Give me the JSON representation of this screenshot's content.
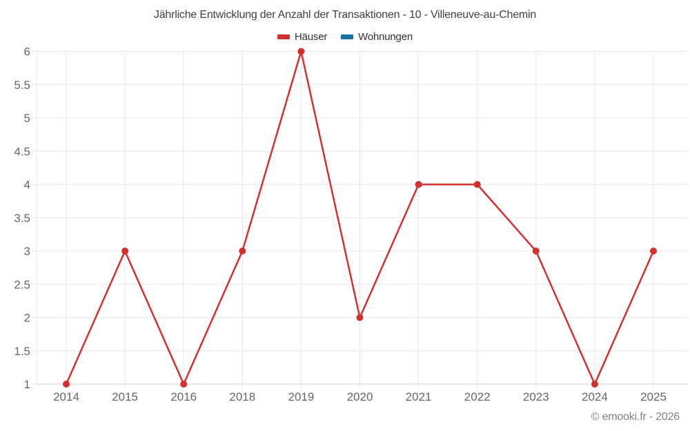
{
  "page": {
    "title": "Jährliche Entwicklung der Anzahl der Transaktionen - 10 - Villeneuve-au-Chemin",
    "footer": "© emooki.fr - 2026"
  },
  "legend": {
    "items": [
      {
        "label": "Häuser",
        "color": "#d32f2f"
      },
      {
        "label": "Wohnungen",
        "color": "#1673a3"
      }
    ]
  },
  "chart_data": {
    "type": "line",
    "title": "Jährliche Entwicklung der Anzahl der Transaktionen - 10 - Villeneuve-au-Chemin",
    "categories": [
      "2014",
      "2015",
      "2016",
      "2018",
      "2019",
      "2020",
      "2021",
      "2022",
      "2023",
      "2024",
      "2025"
    ],
    "series": [
      {
        "name": "Häuser",
        "color": "#d32f2f",
        "values": [
          1,
          3,
          1,
          3,
          6,
          2,
          4,
          4,
          3,
          1,
          3
        ]
      },
      {
        "name": "Wohnungen",
        "color": "#1673a3",
        "values": []
      }
    ],
    "xlabel": "",
    "ylabel": "",
    "ylim": [
      1,
      6
    ],
    "ytick_step": 0.5,
    "grid": true,
    "legend_position": "top",
    "colors": {
      "grid_line": "#e8e8e8",
      "axis_line": "#cfcfcf",
      "tick_label": "#666666",
      "title_text": "#3f3f3f",
      "footer_text": "#808080"
    }
  }
}
